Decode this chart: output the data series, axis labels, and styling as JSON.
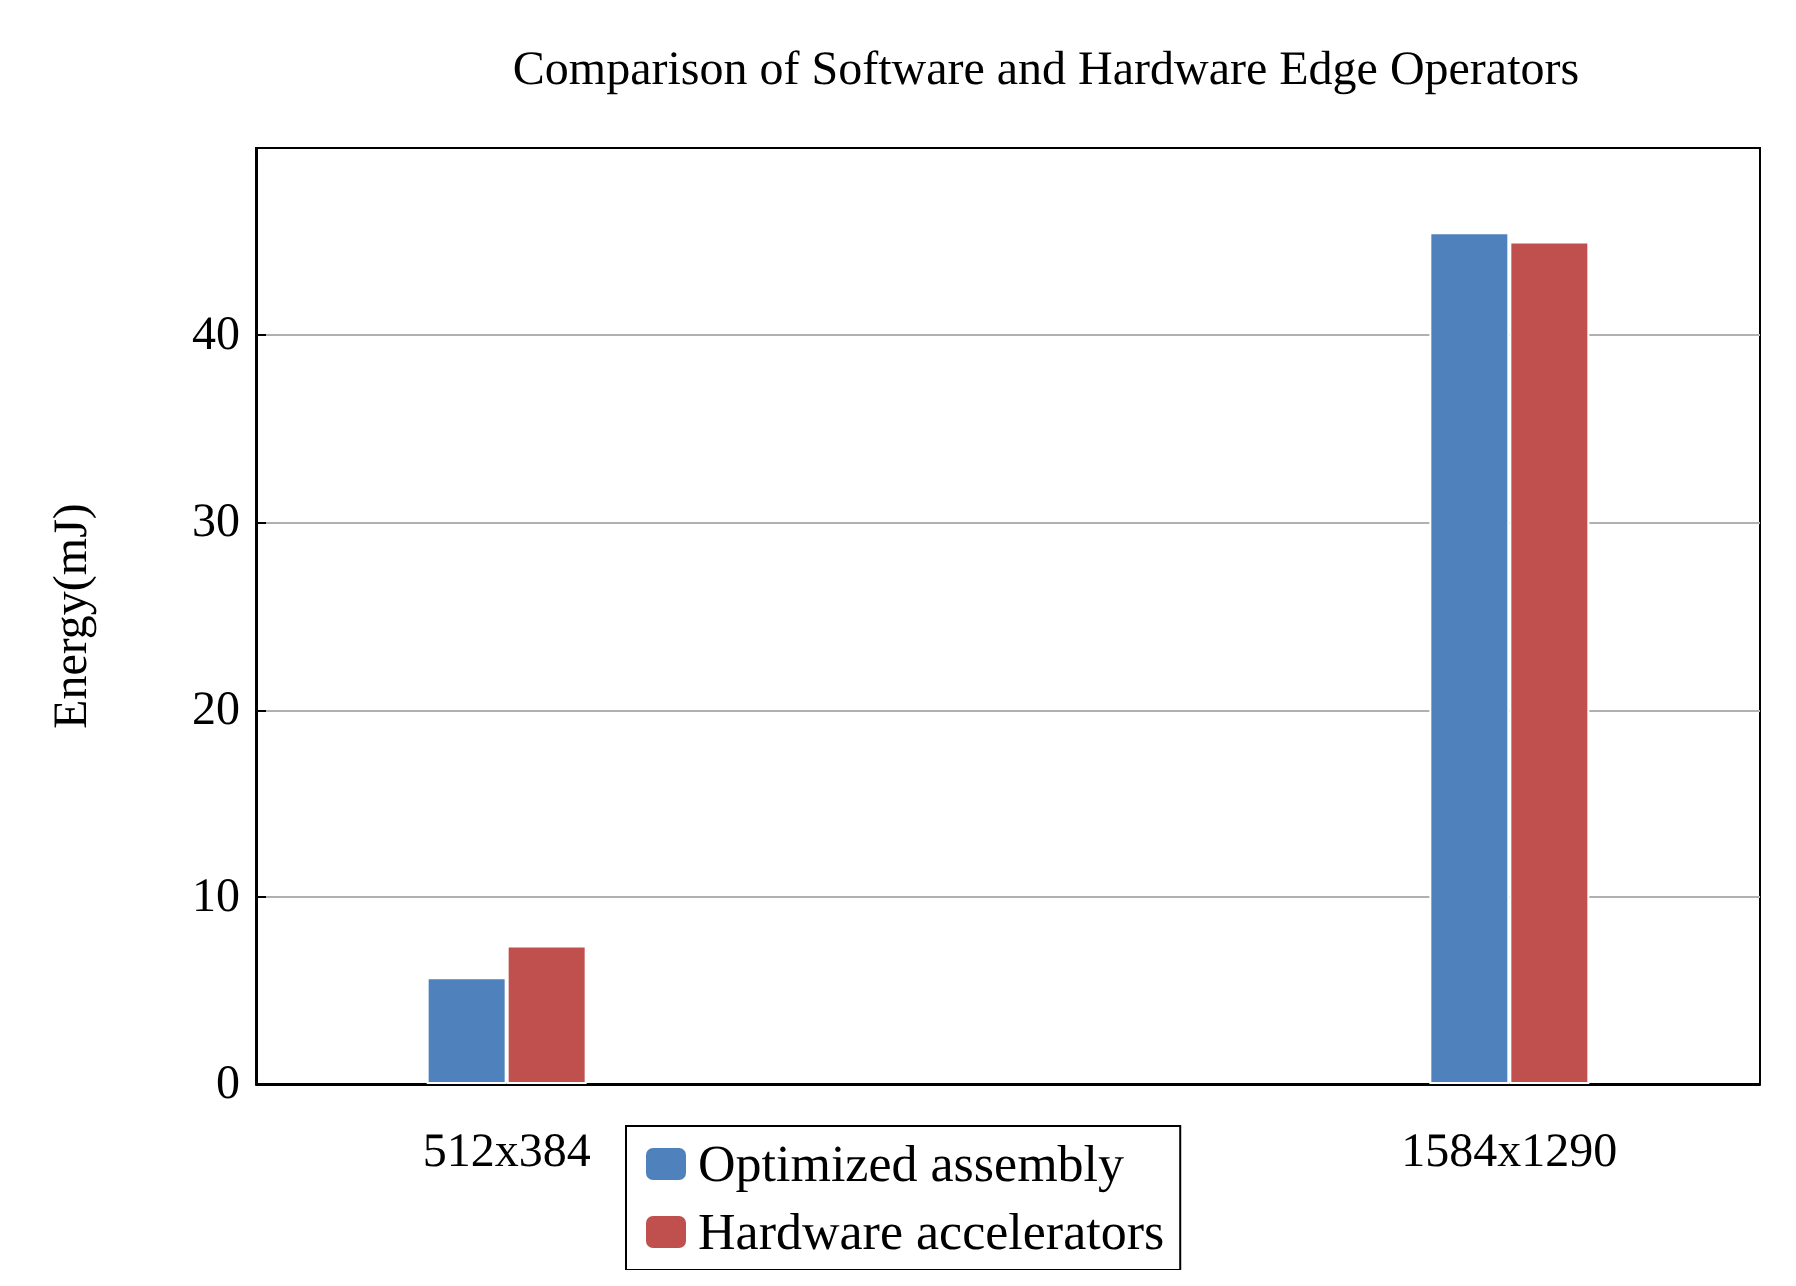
{
  "chart_data": {
    "type": "bar",
    "title": "Comparison of Software and Hardware Edge Operators",
    "ylabel": "Energy(mJ)",
    "categories": [
      "512x384",
      "1584x1290"
    ],
    "series": [
      {
        "name": "Optimized assembly",
        "color": "#4f81bd",
        "values": [
          5.7,
          45.5
        ]
      },
      {
        "name": "Hardware accelerators",
        "color": "#c0504d",
        "values": [
          7.4,
          45.0
        ]
      }
    ],
    "ylim": [
      0,
      50
    ],
    "yticks": [
      0,
      10,
      20,
      30,
      40
    ],
    "grid": "y",
    "legend": "bottom"
  }
}
